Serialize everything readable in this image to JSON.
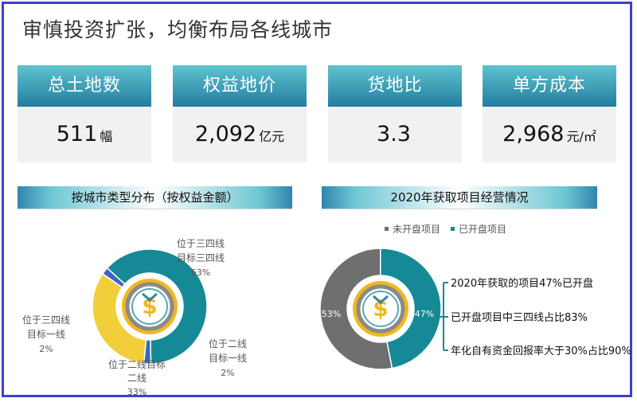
{
  "title": "审慎投资扩张，均衡布局各线城市",
  "kpis": [
    {
      "label": "总土地数",
      "value": "511",
      "unit": "幅"
    },
    {
      "label": "权益地价",
      "value": "2,092",
      "unit": "亿元"
    },
    {
      "label": "货地比",
      "value": "3.3",
      "unit": ""
    },
    {
      "label": "单方成本",
      "value": "2,968",
      "unit": "元/㎡"
    }
  ],
  "chart_data": [
    {
      "type": "pie",
      "title": "按城市类型分布（按权益金额）",
      "slices": [
        {
          "label_lines": [
            "位于三四线",
            "目标三四线"
          ],
          "value": 63,
          "value_label": "63%",
          "color": "#158a96"
        },
        {
          "label_lines": [
            "位于二线",
            "目标一线"
          ],
          "value": 2,
          "value_label": "2%",
          "color": "#2a6dbf"
        },
        {
          "label_lines": [
            "位于二线目标",
            "二线"
          ],
          "value": 33,
          "value_label": "33%",
          "color": "#f2cf3a"
        },
        {
          "label_lines": [
            "位于三四线",
            "目标一线"
          ],
          "value": 2,
          "value_label": "2%",
          "color": "#3b62c6"
        }
      ]
    },
    {
      "type": "pie",
      "title": "2020年获取项目经营情况",
      "legend": [
        "未开盘项目",
        "已开盘项目"
      ],
      "legend_placement": "top",
      "slices": [
        {
          "label": "未开盘项目",
          "value": 53,
          "value_label": "53%",
          "color": "#6f6f6f"
        },
        {
          "label": "已开盘项目",
          "value": 47,
          "value_label": "47%",
          "color": "#158a96"
        }
      ],
      "annotations": [
        "2020年获取的项目47%已开盘",
        "已开盘项目中三四线占比83%",
        "年化自有资金回报率大于30%占比90%"
      ]
    }
  ]
}
